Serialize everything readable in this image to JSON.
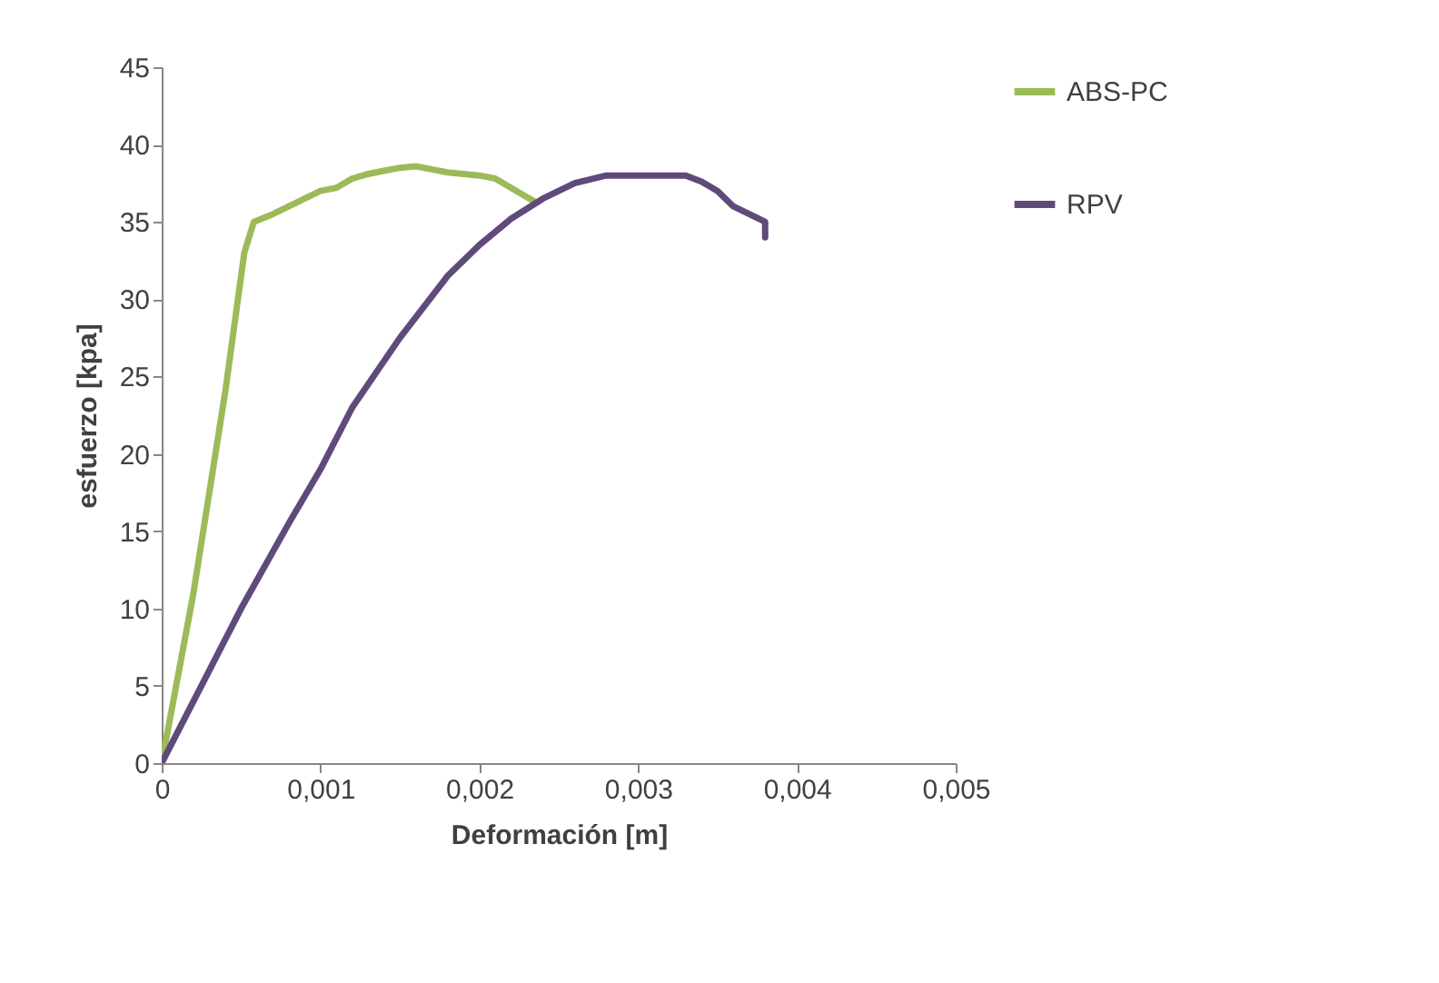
{
  "chart_data": {
    "type": "line",
    "xlabel": "Deformación  [m]",
    "ylabel": "esfuerzo [kpa]",
    "xlim": [
      0,
      0.005
    ],
    "xticks": [
      0,
      {
        "value": 0.001,
        "label": "0,001"
      },
      {
        "value": 0.002,
        "label": "0,002"
      },
      {
        "value": 0.003,
        "label": "0,003"
      },
      {
        "value": 0.004,
        "label": "0,004"
      },
      {
        "value": 0.005,
        "label": "0,005"
      }
    ],
    "ylim": [
      0,
      45
    ],
    "yticks": [
      0,
      5,
      10,
      15,
      20,
      25,
      30,
      35,
      40,
      45
    ],
    "grid": false,
    "legend": "right",
    "marker": "none",
    "line_style": "solid",
    "series": [
      {
        "name": "ABS-PC",
        "color": "#9bbb59",
        "x": [
          0,
          0.0002,
          0.0004,
          0.00052,
          0.00058,
          0.0007,
          0.0008,
          0.0009,
          0.001,
          0.0011,
          0.0012,
          0.0013,
          0.0014,
          0.0015,
          0.0016,
          0.0017,
          0.0018,
          0.0019,
          0.002,
          0.0021,
          0.0022,
          0.0023,
          0.00235
        ],
        "values": [
          0,
          11,
          24,
          33,
          35,
          35.5,
          36,
          36.5,
          37,
          37.2,
          37.8,
          38.1,
          38.3,
          38.5,
          38.6,
          38.4,
          38.2,
          38.1,
          38,
          37.8,
          37.2,
          36.6,
          36.3
        ]
      },
      {
        "name": "RPV",
        "color": "#604a7b",
        "x": [
          0,
          0.0002,
          0.0005,
          0.0008,
          0.001,
          0.0012,
          0.0015,
          0.0018,
          0.002,
          0.0022,
          0.0024,
          0.0026,
          0.0028,
          0.003,
          0.0032,
          0.0033,
          0.0034,
          0.0035,
          0.0036,
          0.0037,
          0.0038,
          0.0038
        ],
        "values": [
          0,
          4,
          10,
          15.5,
          19,
          23,
          27.5,
          31.5,
          33.5,
          35.2,
          36.5,
          37.5,
          38,
          38,
          38,
          38,
          37.6,
          37,
          36,
          35.5,
          35,
          34
        ]
      }
    ]
  }
}
